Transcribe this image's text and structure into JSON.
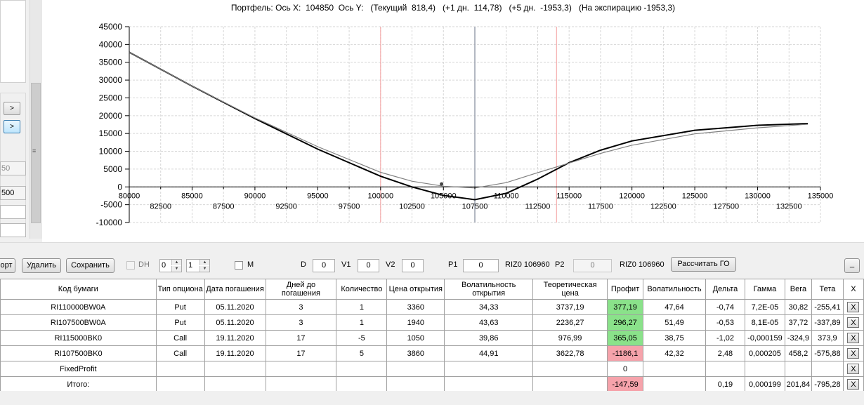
{
  "left_panel": {
    "buttons": [
      ">",
      ">"
    ],
    "fields": [
      "50",
      "500",
      "",
      ""
    ]
  },
  "chart": {
    "title": "Портфель: Ось X:  104850  Ось Y:   (Текущий  818,4)   (+1 дн.  114,78)   (+5 дн.  -1953,3)   (На экспирацию -1953,3)",
    "y_ticks": [
      "45000",
      "40000",
      "35000",
      "30000",
      "25000",
      "20000",
      "15000",
      "10000",
      "5000",
      "0",
      "-5000",
      "-10000"
    ],
    "x_ticks_top": [
      "80000",
      "85000",
      "90000",
      "95000",
      "100000",
      "105000",
      "110000",
      "115000",
      "120000",
      "125000",
      "130000",
      "135000"
    ],
    "x_ticks_bottom": [
      "82500",
      "87500",
      "92500",
      "97500",
      "102500",
      "107500",
      "112500",
      "117500",
      "122500",
      "127500",
      "132500"
    ],
    "colors": {
      "expiration": "#000000",
      "current": "#808080",
      "strike_line": "#f4a0a0",
      "cursor_line": "#9aa0ad"
    }
  },
  "chart_data": {
    "type": "line",
    "title": "Портфель: Ось X:  104850  Ось Y:   (Текущий  818,4)   (+1 дн.  114,78)   (+5 дн.  -1953,3)   (На экспирацию -1953,3)",
    "xlim": [
      80000,
      135000
    ],
    "ylim": [
      -10000,
      45000
    ],
    "grid": true,
    "series": [
      {
        "x": [
          80000,
          85000,
          90000,
          95000,
          100000,
          102500,
          105000,
          107500,
          110000,
          112500,
          115000,
          117500,
          120000,
          125000,
          130000,
          134000
        ],
        "y": [
          37800,
          28300,
          19200,
          10600,
          3000,
          0,
          -2400,
          -3600,
          -1800,
          2200,
          6800,
          10300,
          12900,
          15900,
          17300,
          17800
        ]
      },
      {
        "x": [
          80000,
          85000,
          90000,
          95000,
          100000,
          102500,
          105000,
          107500,
          110000,
          112500,
          115000,
          117500,
          120000,
          125000,
          130000,
          134000
        ],
        "y": [
          37800,
          28300,
          19400,
          11300,
          4100,
          1600,
          200,
          -300,
          1200,
          4000,
          6700,
          9400,
          11700,
          14900,
          16600,
          17600
        ]
      }
    ],
    "vertical_lines": [
      100000,
      107500,
      114000
    ],
    "marker": {
      "x": 104850,
      "y": 818.4
    }
  },
  "toolbar": {
    "export_label": "орт",
    "delete_label": "Удалить",
    "save_label": "Сохранить",
    "dh_label": "DH",
    "spin1_value": "0",
    "spin2_value": "1",
    "m_label": "M",
    "d_label": "D",
    "d_value": "0",
    "v1_label": "V1",
    "v1_value": "0",
    "v2_label": "V2",
    "v2_value": "0",
    "p1_label": "P1",
    "p1_value": "0",
    "riz1_label": "RIZ0 106960",
    "p2_label": "P2",
    "p2_value": "0",
    "riz2_label": "RIZ0 106960",
    "calc_label": "Рассчитать ГО",
    "min_label": "_"
  },
  "table": {
    "headers": [
      "Код бумаги",
      "Тип опциона",
      "Дата погашения",
      "Дней до погашения",
      "Количество",
      "Цена открытия",
      "Волатильность открытия",
      "Теоретическая цена",
      "Профит",
      "Волатильность",
      "Дельта",
      "Гамма",
      "Вега",
      "Тета",
      "X"
    ],
    "rows": [
      {
        "cells": [
          "RI110000BW0A",
          "Put",
          "05.11.2020",
          "3",
          "1",
          "3360",
          "34,33",
          "3737,19",
          "377,19",
          "47,64",
          "-0,74",
          "7,2E-05",
          "30,82",
          "-255,41"
        ],
        "profit_state": "green",
        "x": "X"
      },
      {
        "cells": [
          "RI107500BW0A",
          "Put",
          "05.11.2020",
          "3",
          "1",
          "1940",
          "43,63",
          "2236,27",
          "296,27",
          "51,49",
          "-0,53",
          "8,1E-05",
          "37,72",
          "-337,89"
        ],
        "profit_state": "green",
        "x": "X"
      },
      {
        "cells": [
          "RI115000BK0",
          "Call",
          "19.11.2020",
          "17",
          "-5",
          "1050",
          "39,86",
          "976,99",
          "365,05",
          "38,75",
          "-1,02",
          "-0,000159",
          "-324,9",
          "373,9"
        ],
        "profit_state": "green",
        "x": "X"
      },
      {
        "cells": [
          "RI107500BK0",
          "Call",
          "19.11.2020",
          "17",
          "5",
          "3860",
          "44,91",
          "3622,78",
          "-1186,1",
          "42,32",
          "2,48",
          "0,000205",
          "458,2",
          "-575,88"
        ],
        "profit_state": "red",
        "x": "X"
      },
      {
        "cells": [
          "FixedProfit",
          "",
          "",
          "",
          "",
          "",
          "",
          "",
          "0",
          "",
          "",
          "",
          "",
          ""
        ],
        "profit_state": "",
        "x": "X"
      },
      {
        "cells": [
          "Итого:",
          "",
          "",
          "",
          "",
          "",
          "",
          "",
          "-147,59",
          "",
          "0,19",
          "0,000199",
          "201,84",
          "-795,28"
        ],
        "profit_state": "red",
        "x": "X"
      }
    ]
  }
}
